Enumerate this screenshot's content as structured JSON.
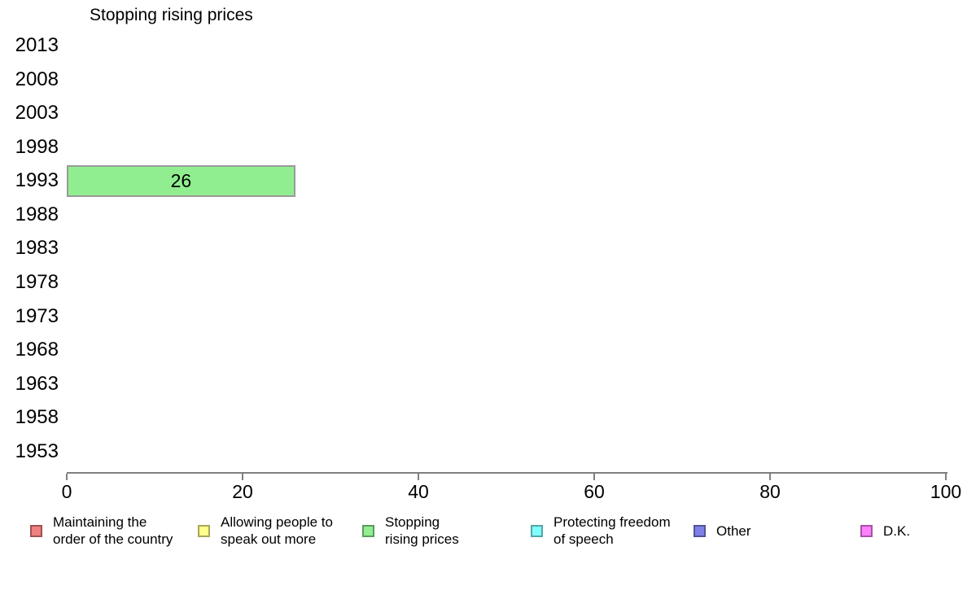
{
  "chart_data": {
    "type": "bar",
    "orientation": "horizontal",
    "title": "Stopping rising prices",
    "categories": [
      "2013",
      "2008",
      "2003",
      "1998",
      "1993",
      "1988",
      "1983",
      "1978",
      "1973",
      "1968",
      "1963",
      "1958",
      "1953"
    ],
    "series": [
      {
        "name": "Stopping rising prices",
        "values": [
          null,
          null,
          null,
          null,
          26,
          null,
          null,
          null,
          null,
          null,
          null,
          null,
          null
        ],
        "color": "#90EE90"
      }
    ],
    "bar_labels": [
      "",
      "",
      "",
      "",
      "26",
      "",
      "",
      "",
      "",
      "",
      "",
      "",
      ""
    ],
    "xlabel": "",
    "ylabel": "",
    "xlim": [
      0,
      100
    ],
    "xticks": [
      0,
      20,
      40,
      60,
      80,
      100
    ],
    "grid": false,
    "axis_color": "#808080",
    "legend_position": "bottom",
    "legend": [
      {
        "line1": "Maintaining the",
        "line2": "order of the country",
        "color": "#F08080"
      },
      {
        "line1": "Allowing people to",
        "line2": "speak out more",
        "color": "#FFFF8C"
      },
      {
        "line1": "Stopping",
        "line2": "rising prices",
        "color": "#90EE90"
      },
      {
        "line1": "Protecting freedom",
        "line2": "of speech",
        "color": "#80FFFF"
      },
      {
        "line1": "Other",
        "line2": "",
        "color": "#8080E8"
      },
      {
        "line1": "D.K.",
        "line2": "",
        "color": "#FF80FF"
      }
    ]
  }
}
